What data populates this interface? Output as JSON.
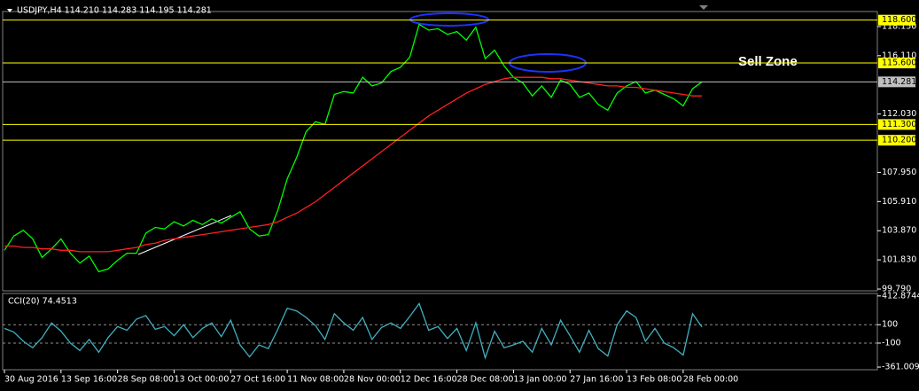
{
  "chart_data": [
    {
      "type": "line",
      "title": "USDJPY,H4  114.210 114.283 114.195 114.281",
      "annotation": "Sell Zone",
      "xlim": [
        0,
        92.6
      ],
      "xticks": [
        {
          "value": 0,
          "label": "30 Aug 2016"
        },
        {
          "value": 6,
          "label": "13 Sep 16:00"
        },
        {
          "value": 12,
          "label": "28 Sep 08:00"
        },
        {
          "value": 18,
          "label": "13 Oct 00:00"
        },
        {
          "value": 24,
          "label": "27 Oct 16:00"
        },
        {
          "value": 30,
          "label": "11 Nov 08:00"
        },
        {
          "value": 36,
          "label": "28 Nov 00:00"
        },
        {
          "value": 42,
          "label": "12 Dec 16:00"
        },
        {
          "value": 48,
          "label": "28 Dec 08:00"
        },
        {
          "value": 54,
          "label": "13 Jan 00:00"
        },
        {
          "value": 60,
          "label": "27 Jan 16:00"
        },
        {
          "value": 66,
          "label": "13 Feb 08:00"
        },
        {
          "value": 72,
          "label": "28 Feb 00:00"
        }
      ],
      "ylim": [
        99.73,
        119.2
      ],
      "yticks": [
        {
          "value": 118.15,
          "label": "118.150"
        },
        {
          "value": 116.11,
          "label": "116.110"
        },
        {
          "value": 112.03,
          "label": "112.030"
        },
        {
          "value": 107.95,
          "label": "107.950"
        },
        {
          "value": 105.91,
          "label": "105.910"
        },
        {
          "value": 103.87,
          "label": "103.870"
        },
        {
          "value": 101.83,
          "label": "101.830"
        },
        {
          "value": 99.79,
          "label": "99.790"
        }
      ],
      "levels": [
        {
          "value": 118.6,
          "label": "118.600",
          "color": "#ffff00"
        },
        {
          "value": 115.6,
          "label": "115.600",
          "color": "#ffff00"
        },
        {
          "value": 114.281,
          "label": "114.281",
          "color": "#c0c0c0"
        },
        {
          "value": 111.3,
          "label": "111.300",
          "color": "#ffff00"
        },
        {
          "value": 110.2,
          "label": "110.200",
          "color": "#ffff00"
        }
      ],
      "series": [
        {
          "name": "USDJPY",
          "color": "#00ff00",
          "values": [
            102.5,
            103.5,
            103.9,
            103.3,
            102.0,
            102.6,
            103.3,
            102.3,
            101.6,
            102.1,
            101.0,
            101.2,
            101.8,
            102.3,
            102.3,
            103.7,
            104.1,
            104.0,
            104.5,
            104.2,
            104.6,
            104.3,
            104.7,
            104.4,
            104.8,
            105.2,
            104.0,
            103.5,
            103.6,
            105.3,
            107.5,
            109.0,
            110.8,
            111.5,
            111.3,
            113.4,
            113.6,
            113.5,
            114.6,
            114.0,
            114.2,
            115.0,
            115.3,
            116.0,
            118.3,
            117.9,
            118.0,
            117.6,
            117.8,
            117.2,
            118.1,
            115.9,
            116.5,
            115.4,
            114.6,
            114.2,
            113.3,
            114.0,
            113.2,
            114.4,
            114.1,
            113.2,
            113.5,
            112.7,
            112.3,
            113.5,
            114.0,
            114.3,
            113.5,
            113.7,
            113.4,
            113.1,
            112.6,
            113.8,
            114.281
          ]
        },
        {
          "name": "MA",
          "color": "#ff2020",
          "values": [
            102.8,
            102.8,
            102.7,
            102.7,
            102.6,
            102.6,
            102.5,
            102.5,
            102.4,
            102.4,
            102.4,
            102.4,
            102.5,
            102.6,
            102.7,
            102.9,
            103.0,
            103.2,
            103.3,
            103.4,
            103.5,
            103.6,
            103.7,
            103.8,
            103.9,
            104.0,
            104.1,
            104.2,
            104.3,
            104.5,
            104.8,
            105.1,
            105.5,
            105.9,
            106.4,
            106.9,
            107.4,
            107.9,
            108.4,
            108.9,
            109.4,
            109.9,
            110.4,
            110.9,
            111.4,
            111.9,
            112.3,
            112.7,
            113.1,
            113.5,
            113.8,
            114.1,
            114.3,
            114.5,
            114.6,
            114.6,
            114.6,
            114.6,
            114.5,
            114.5,
            114.4,
            114.3,
            114.2,
            114.1,
            114.0,
            114.0,
            113.9,
            113.9,
            113.8,
            113.7,
            113.6,
            113.5,
            113.4,
            113.3,
            113.3
          ]
        }
      ]
    },
    {
      "type": "line",
      "title": "CCI(20) 74.4513",
      "xlim": [
        0,
        92.6
      ],
      "ylim": [
        -380,
        440
      ],
      "yticks": [
        412.8744,
        100,
        -100,
        -361.0092
      ],
      "dashed_levels": [
        100,
        -100
      ],
      "series": [
        {
          "name": "CCI(20)",
          "color": "#40b0c0",
          "values": [
            60,
            20,
            -80,
            -150,
            -40,
            120,
            30,
            -100,
            -180,
            -60,
            -200,
            -40,
            80,
            40,
            160,
            200,
            50,
            80,
            -20,
            100,
            -40,
            60,
            120,
            -30,
            150,
            -120,
            -250,
            -120,
            -160,
            50,
            280,
            250,
            180,
            90,
            -60,
            220,
            120,
            40,
            180,
            -60,
            70,
            120,
            60,
            190,
            330,
            40,
            80,
            -50,
            60,
            -180,
            120,
            -260,
            30,
            -150,
            -120,
            -80,
            -200,
            60,
            -120,
            150,
            -20,
            -200,
            40,
            -160,
            -240,
            100,
            250,
            180,
            -80,
            60,
            -100,
            -150,
            -230,
            220,
            74.4513
          ]
        }
      ]
    }
  ]
}
